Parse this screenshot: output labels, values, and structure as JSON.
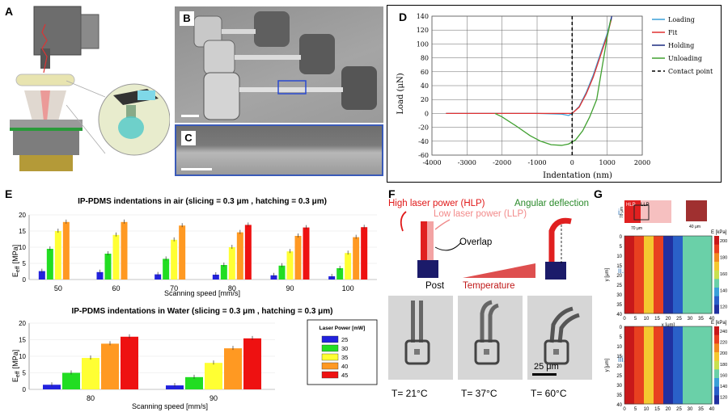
{
  "panels": {
    "A": "A",
    "B": "B",
    "C": "C",
    "D": "D",
    "E": "E",
    "F": "F",
    "G": "G"
  },
  "chart_d": {
    "type": "line",
    "xlabel": "Indentation (nm)",
    "ylabel": "Load (μN)",
    "xticks": [
      "-4000",
      "-3000",
      "-2000",
      "-1000",
      "0",
      "1000",
      "2000"
    ],
    "yticks": [
      "140",
      "120",
      "100",
      "80",
      "60",
      "40",
      "20",
      "0",
      "-20",
      "-40",
      "-60"
    ],
    "legend": [
      "Loading",
      "Fit",
      "Holding",
      "Unloading",
      "Contact point"
    ]
  },
  "chart_data": [
    {
      "type": "line",
      "title": "",
      "xlabel": "Indentation (nm)",
      "ylabel": "Load (μN)",
      "xlim": [
        -4000,
        2000
      ],
      "ylim": [
        -60,
        140
      ],
      "series": [
        {
          "name": "Loading",
          "color": "#3aa0d8",
          "x": [
            -3600,
            -2500,
            -1000,
            -300,
            -100,
            0,
            200,
            400,
            600,
            800,
            1000,
            1120
          ],
          "y": [
            0,
            0,
            0,
            -1,
            -3,
            0,
            10,
            30,
            55,
            85,
            115,
            138
          ]
        },
        {
          "name": "Fit",
          "color": "#e03030",
          "x": [
            -3600,
            -2500,
            -1500,
            -500,
            -100,
            0,
            200,
            400,
            600,
            800,
            1000,
            1120
          ],
          "y": [
            0,
            0,
            0,
            0,
            0,
            0,
            9,
            28,
            52,
            82,
            112,
            136
          ]
        },
        {
          "name": "Holding",
          "color": "#1a2a80",
          "x": [
            1100,
            1130
          ],
          "y": [
            133,
            140
          ]
        },
        {
          "name": "Unloading",
          "color": "#40a030",
          "x": [
            1100,
            1000,
            900,
            800,
            700,
            500,
            300,
            100,
            -100,
            -300,
            -600,
            -900,
            -1200,
            -1600,
            -2000,
            -2200
          ],
          "y": [
            135,
            110,
            80,
            50,
            20,
            -5,
            -25,
            -38,
            -44,
            -46,
            -45,
            -40,
            -32,
            -18,
            -5,
            0
          ]
        },
        {
          "name": "Contact point",
          "color": "#000000",
          "x": [
            0,
            0
          ],
          "y": [
            -60,
            140
          ]
        }
      ]
    },
    {
      "type": "bar",
      "title": "IP-PDMS indentations in air (slicing = 0.3 μm , hatching = 0.3 μm)",
      "xlabel": "Scanning speed [mm/s]",
      "ylabel": "Eeff [MPa]",
      "ylim": [
        0,
        20
      ],
      "categories": [
        "50",
        "60",
        "70",
        "80",
        "90",
        "100"
      ],
      "series": [
        {
          "name": "25",
          "color": "#2222dd",
          "values": [
            2.6,
            2.3,
            1.6,
            1.5,
            1.3,
            1.0
          ]
        },
        {
          "name": "30",
          "color": "#22dd22",
          "values": [
            9.5,
            8.0,
            6.4,
            4.5,
            4.3,
            3.5
          ]
        },
        {
          "name": "35",
          "color": "#ffff33",
          "values": [
            15.0,
            13.8,
            12.3,
            10.0,
            8.7,
            8.2
          ]
        },
        {
          "name": "40",
          "color": "#ff9922",
          "values": [
            17.8,
            17.8,
            16.7,
            14.6,
            13.5,
            13.1
          ]
        },
        {
          "name": "45",
          "color": "#ee1111",
          "values": [
            null,
            null,
            null,
            16.9,
            16.1,
            16.2
          ]
        }
      ]
    },
    {
      "type": "bar",
      "title": "IP-PDMS indentations in Water (slicing = 0.3 μm , hatching = 0.3 μm)",
      "xlabel": "Scanning speed [mm/s]",
      "ylabel": "Eeff [MPa]",
      "ylim": [
        0,
        20
      ],
      "categories": [
        "80",
        "90"
      ],
      "series": [
        {
          "name": "25",
          "color": "#2222dd",
          "values": [
            1.4,
            1.2
          ]
        },
        {
          "name": "30",
          "color": "#22dd22",
          "values": [
            5.0,
            3.7
          ]
        },
        {
          "name": "35",
          "color": "#ffff33",
          "values": [
            9.5,
            8.0
          ]
        },
        {
          "name": "40",
          "color": "#ff9922",
          "values": [
            13.8,
            12.4
          ]
        },
        {
          "name": "45",
          "color": "#ee1111",
          "values": [
            15.9,
            15.4
          ]
        }
      ]
    }
  ],
  "chart_e": {
    "title_air": "IP-PDMS indentations in air (slicing = 0.3 μm , hatching = 0.3 μm)",
    "title_water": "IP-PDMS indentations in Water (slicing = 0.3 μm , hatching = 0.3 μm)",
    "xlabel": "Scanning speed [mm/s]",
    "ylabel": "E",
    "ylabel_sub": "eff",
    "ylabel_unit": "[MPa]",
    "yticks": [
      "0",
      "5",
      "10",
      "15",
      "20"
    ],
    "categories_air": [
      "50",
      "60",
      "70",
      "80",
      "90",
      "100"
    ],
    "categories_water": [
      "80",
      "90"
    ],
    "legend_title": "Laser Power [mW]",
    "legend": [
      "25",
      "30",
      "35",
      "40",
      "45"
    ]
  },
  "panel_f": {
    "hlp": "High laser power (HLP)",
    "llp": "Low laser power (LLP)",
    "overlap": "Overlap",
    "angular": "Angular deflection",
    "post": "Post",
    "temperature": "Temperature",
    "scalebar": "25 μm",
    "temps": [
      "T= 21°C",
      "T= 37°C",
      "T= 60°C"
    ]
  },
  "panel_g": {
    "roman": [
      "i.",
      "ii.",
      "iii."
    ],
    "hlp": "HLP",
    "llp": "LLP",
    "dim_70": "70 μm",
    "dim_40": "40 μm",
    "dim_70b": "70 μm",
    "axis_x": "x [μm]",
    "axis_y": "y [μm]",
    "ticks_y": [
      "0",
      "5",
      "10",
      "15",
      "20",
      "25",
      "30",
      "35",
      "40"
    ],
    "ticks_x": [
      "0",
      "5",
      "10",
      "15",
      "20",
      "25",
      "30",
      "35",
      "40"
    ],
    "cbar_label": "E [kPa]",
    "cbar1": [
      "200",
      "180",
      "160",
      "140",
      "120"
    ],
    "cbar2": [
      "240",
      "220",
      "200",
      "180",
      "160",
      "140",
      "120"
    ]
  }
}
